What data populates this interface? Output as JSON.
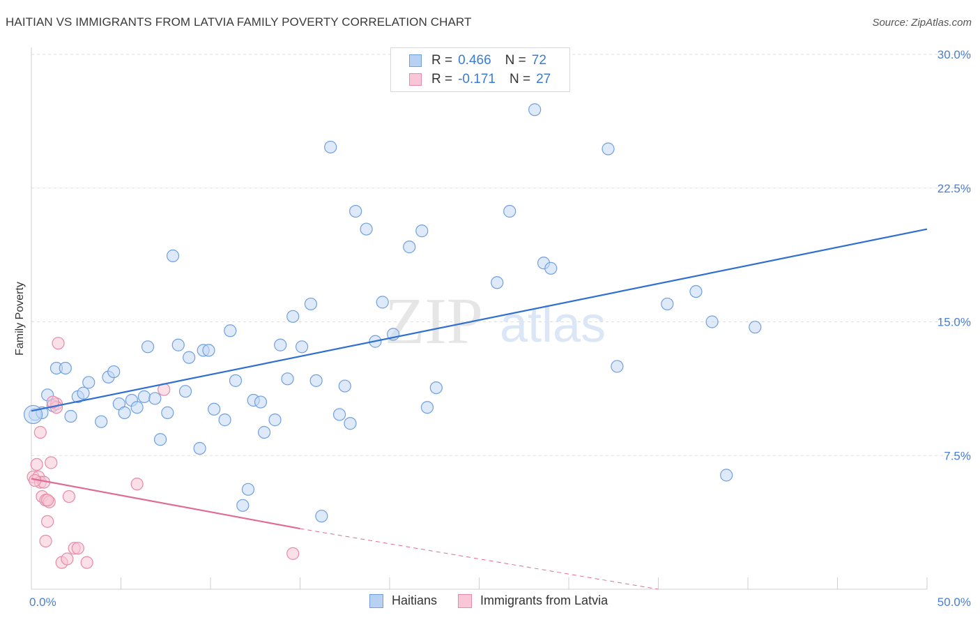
{
  "title": "HAITIAN VS IMMIGRANTS FROM LATVIA FAMILY POVERTY CORRELATION CHART",
  "source": "Source: ZipAtlas.com",
  "watermark": {
    "zip": "ZIP",
    "atlas": "atlas"
  },
  "legend": {
    "r_label": "R =",
    "n_label": "N =",
    "rows": [
      {
        "r": "0.466",
        "n": "72",
        "fill": "#b8d0f2",
        "stroke": "#6f9fe0"
      },
      {
        "r": "-0.171",
        "n": "27",
        "fill": "#f8c6d6",
        "stroke": "#e88aa8"
      }
    ]
  },
  "bottom_legend": [
    {
      "label": "Haitians",
      "fill": "#b8d0f2",
      "stroke": "#6f9fe0"
    },
    {
      "label": "Immigrants from Latvia",
      "fill": "#f8c6d6",
      "stroke": "#e88aa8"
    }
  ],
  "chart_data": {
    "type": "scatter",
    "xlabel": "",
    "ylabel": "Family Poverty",
    "xlim": [
      0,
      50
    ],
    "ylim": [
      0,
      30
    ],
    "x_tick_labels": [
      {
        "value": 0,
        "label": "0.0%"
      },
      {
        "value": 50,
        "label": "50.0%"
      }
    ],
    "y_tick_labels": [
      {
        "value": 7.5,
        "label": "7.5%"
      },
      {
        "value": 15,
        "label": "15.0%"
      },
      {
        "value": 22.5,
        "label": "22.5%"
      },
      {
        "value": 30,
        "label": "30.0%"
      }
    ],
    "grid": {
      "horizontal": true,
      "style": "dashed",
      "color": "#dddddd"
    },
    "series": [
      {
        "name": "Haitians",
        "color": "#6f9fe0",
        "fill": "#c2d8f5",
        "trend": {
          "x": [
            0,
            50
          ],
          "y": [
            10.0,
            20.2
          ],
          "color": "#2e6fd0"
        },
        "points": [
          [
            0.2,
            9.8
          ],
          [
            0.6,
            9.9
          ],
          [
            0.9,
            10.9
          ],
          [
            1.2,
            10.3
          ],
          [
            1.4,
            12.4
          ],
          [
            1.9,
            12.4
          ],
          [
            2.2,
            9.7
          ],
          [
            2.6,
            10.8
          ],
          [
            2.9,
            11.0
          ],
          [
            3.2,
            11.6
          ],
          [
            3.9,
            9.4
          ],
          [
            4.3,
            11.9
          ],
          [
            4.6,
            12.2
          ],
          [
            4.9,
            10.4
          ],
          [
            5.2,
            9.9
          ],
          [
            5.6,
            10.6
          ],
          [
            5.9,
            10.2
          ],
          [
            6.3,
            10.8
          ],
          [
            6.5,
            13.6
          ],
          [
            6.9,
            10.7
          ],
          [
            7.2,
            8.4
          ],
          [
            7.6,
            9.9
          ],
          [
            7.9,
            18.7
          ],
          [
            8.2,
            13.7
          ],
          [
            8.6,
            11.1
          ],
          [
            8.8,
            13.0
          ],
          [
            9.4,
            7.9
          ],
          [
            9.6,
            13.4
          ],
          [
            9.9,
            13.4
          ],
          [
            10.2,
            10.1
          ],
          [
            10.8,
            9.5
          ],
          [
            11.1,
            14.5
          ],
          [
            11.4,
            11.7
          ],
          [
            11.8,
            4.7
          ],
          [
            12.1,
            5.6
          ],
          [
            12.4,
            10.6
          ],
          [
            12.8,
            10.5
          ],
          [
            13.0,
            8.8
          ],
          [
            13.6,
            9.5
          ],
          [
            13.9,
            13.7
          ],
          [
            14.3,
            11.8
          ],
          [
            14.6,
            15.3
          ],
          [
            15.1,
            13.6
          ],
          [
            15.6,
            16.0
          ],
          [
            15.9,
            11.7
          ],
          [
            16.2,
            4.1
          ],
          [
            16.7,
            24.8
          ],
          [
            17.2,
            9.8
          ],
          [
            17.5,
            11.4
          ],
          [
            17.8,
            9.3
          ],
          [
            18.1,
            21.2
          ],
          [
            18.7,
            20.2
          ],
          [
            19.2,
            13.9
          ],
          [
            19.6,
            16.1
          ],
          [
            20.2,
            14.3
          ],
          [
            21.1,
            19.2
          ],
          [
            21.8,
            20.1
          ],
          [
            22.1,
            10.2
          ],
          [
            22.6,
            11.3
          ],
          [
            26.0,
            17.2
          ],
          [
            26.7,
            21.2
          ],
          [
            28.1,
            26.9
          ],
          [
            28.6,
            18.3
          ],
          [
            29.0,
            18.0
          ],
          [
            32.2,
            24.7
          ],
          [
            32.7,
            12.5
          ],
          [
            35.5,
            16.0
          ],
          [
            37.1,
            16.7
          ],
          [
            38.0,
            15.0
          ],
          [
            38.8,
            6.4
          ],
          [
            40.4,
            14.7
          ],
          [
            0.1,
            9.8
          ]
        ]
      },
      {
        "name": "Immigrants from Latvia",
        "color": "#e88aa8",
        "fill": "#f8c6d6",
        "trend": {
          "x": [
            0,
            15
          ],
          "y": [
            6.2,
            3.4
          ],
          "color": "#e06c96"
        },
        "trend_extension": {
          "x": [
            15,
            35
          ],
          "y": [
            3.4,
            0.0
          ]
        },
        "points": [
          [
            0.1,
            6.3
          ],
          [
            0.3,
            7.0
          ],
          [
            0.4,
            6.3
          ],
          [
            0.5,
            6.0
          ],
          [
            0.5,
            8.8
          ],
          [
            0.6,
            5.2
          ],
          [
            0.7,
            6.0
          ],
          [
            0.8,
            5.0
          ],
          [
            0.8,
            2.7
          ],
          [
            0.9,
            3.8
          ],
          [
            1.0,
            4.9
          ],
          [
            1.1,
            7.1
          ],
          [
            1.4,
            10.4
          ],
          [
            1.4,
            10.2
          ],
          [
            1.5,
            13.8
          ],
          [
            1.7,
            1.5
          ],
          [
            2.0,
            1.7
          ],
          [
            2.1,
            5.2
          ],
          [
            2.4,
            2.3
          ],
          [
            2.6,
            2.3
          ],
          [
            3.1,
            1.5
          ],
          [
            5.9,
            5.9
          ],
          [
            7.4,
            11.2
          ],
          [
            14.6,
            2.0
          ],
          [
            0.2,
            6.1
          ],
          [
            0.9,
            5.0
          ],
          [
            1.2,
            10.5
          ]
        ]
      }
    ]
  }
}
